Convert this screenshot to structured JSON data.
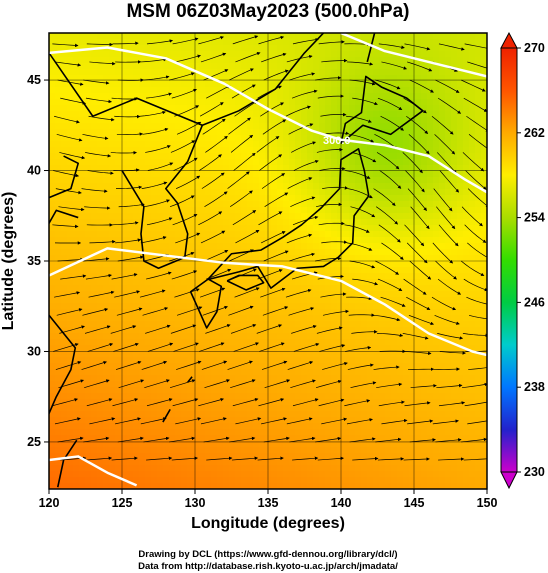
{
  "chart_data": {
    "type": "heatmap",
    "title": "MSM 06Z03May2023 (500.0hPa)",
    "xlabel": "Longitude (degrees)",
    "ylabel": "Latitude  (degrees)",
    "xlim": [
      120,
      150
    ],
    "ylim": [
      22.4,
      47.6
    ],
    "x_ticks": [
      "120",
      "125",
      "130",
      "135",
      "140",
      "145",
      "150"
    ],
    "y_ticks": [
      "25",
      "30",
      "35",
      "40",
      "45"
    ],
    "x_tick_values": [
      120,
      125,
      130,
      135,
      140,
      145,
      150
    ],
    "y_tick_values": [
      25,
      30,
      35,
      40,
      45
    ],
    "grid": true,
    "colorbar": {
      "min": 230,
      "max": 270,
      "ticks": [
        "270",
        "262",
        "254",
        "246",
        "238",
        "230"
      ],
      "tick_values": [
        270,
        262,
        254,
        246,
        238,
        230
      ],
      "colors": [
        "#cc00cc",
        "#2222cc",
        "#0077ff",
        "#00cccc",
        "#00cc44",
        "#33dd00",
        "#aadd00",
        "#ffee00",
        "#ffaa00",
        "#ff5500",
        "#ee2200"
      ]
    },
    "field": {
      "description_units": "K",
      "corner_values": {
        "lon120_lat47": 257,
        "lon150_lat47": 256,
        "lon120_lat23": 265,
        "lon150_lat23": 262
      },
      "contour_label": "300.0"
    },
    "contours": [
      {
        "label": "300.0",
        "points": [
          [
            120,
            46.5
          ],
          [
            124,
            46.8
          ],
          [
            128,
            46.2
          ],
          [
            132,
            44.8
          ],
          [
            135,
            43.4
          ],
          [
            138,
            42.2
          ],
          [
            140,
            41.7
          ],
          [
            143,
            41.4
          ],
          [
            146,
            40.8
          ],
          [
            148.5,
            39.5
          ],
          [
            150,
            38.8
          ]
        ]
      },
      {
        "label": "",
        "points": [
          [
            120,
            34.2
          ],
          [
            124,
            35.7
          ],
          [
            128,
            35.3
          ],
          [
            132,
            34.9
          ],
          [
            136,
            34.7
          ],
          [
            140,
            33.9
          ],
          [
            143,
            32.6
          ],
          [
            146,
            31.0
          ],
          [
            149,
            30.0
          ],
          [
            150,
            29.8
          ]
        ]
      },
      {
        "label": "",
        "points": [
          [
            140,
            47.6
          ],
          [
            143,
            46.6
          ],
          [
            147,
            45.8
          ],
          [
            150,
            45.2
          ]
        ]
      },
      {
        "label": "",
        "points": [
          [
            120,
            24.0
          ],
          [
            122,
            24.2
          ],
          [
            124,
            23.3
          ],
          [
            126,
            22.6
          ]
        ]
      }
    ],
    "streamline_flow": "westerly, curving north-east over northern Japan and south-east east of 140E"
  },
  "footer": {
    "line1": "Drawing by DCL (https://www.gfd-dennou.org/library/dcl/)",
    "line2": "Data from http://database.rish.kyoto-u.ac.jp/arch/jmadata/"
  }
}
